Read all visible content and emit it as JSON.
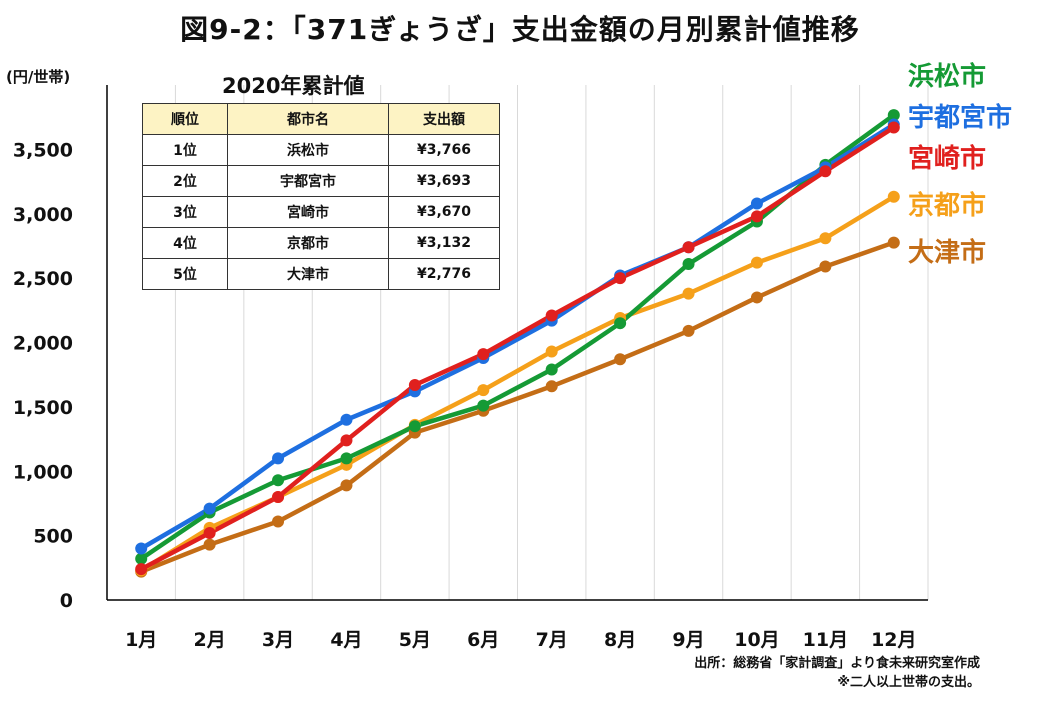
{
  "chart_data": {
    "type": "line",
    "title": "図9-2：「371ぎょうざ」支出金額の月別累計値推移",
    "ylabel": "(円/世帯)",
    "xlabel": "",
    "categories": [
      "1月",
      "2月",
      "3月",
      "4月",
      "5月",
      "6月",
      "7月",
      "8月",
      "9月",
      "10月",
      "11月",
      "12月"
    ],
    "ylim": [
      0,
      4000
    ],
    "yticks": [
      0,
      500,
      1000,
      1500,
      2000,
      2500,
      3000,
      3500
    ],
    "ytick_labels": [
      "0",
      "500",
      "1,000",
      "1,500",
      "2,000",
      "2,500",
      "3,000",
      "3,500"
    ],
    "grid": true,
    "series": [
      {
        "name": "浜松市",
        "color": "#159a35",
        "values": [
          320,
          680,
          930,
          1100,
          1350,
          1510,
          1790,
          2150,
          2610,
          2940,
          3380,
          3766
        ]
      },
      {
        "name": "宇都宮市",
        "color": "#1e6fe0",
        "values": [
          400,
          710,
          1100,
          1400,
          1620,
          1880,
          2170,
          2520,
          2740,
          3080,
          3360,
          3693
        ]
      },
      {
        "name": "宮崎市",
        "color": "#e0201e",
        "values": [
          240,
          520,
          800,
          1240,
          1670,
          1910,
          2210,
          2500,
          2740,
          2980,
          3330,
          3670
        ]
      },
      {
        "name": "京都市",
        "color": "#f5a01a",
        "values": [
          230,
          560,
          800,
          1050,
          1360,
          1630,
          1930,
          2190,
          2380,
          2620,
          2810,
          3132
        ]
      },
      {
        "name": "大津市",
        "color": "#c46d16",
        "values": [
          220,
          430,
          610,
          890,
          1300,
          1470,
          1660,
          1870,
          2090,
          2350,
          2590,
          2776
        ]
      }
    ]
  },
  "table": {
    "title": "2020年累計値",
    "headers": [
      "順位",
      "都市名",
      "支出額"
    ],
    "rows": [
      [
        "1位",
        "浜松市",
        "¥3,766"
      ],
      [
        "2位",
        "宇都宮市",
        "¥3,693"
      ],
      [
        "3位",
        "宮崎市",
        "¥3,670"
      ],
      [
        "4位",
        "京都市",
        "¥3,132"
      ],
      [
        "5位",
        "大津市",
        "¥2,776"
      ]
    ]
  },
  "source": {
    "line1": "出所：総務省「家計調査」より食未来研究室作成",
    "line2": "※二人以上世帯の支出。"
  }
}
